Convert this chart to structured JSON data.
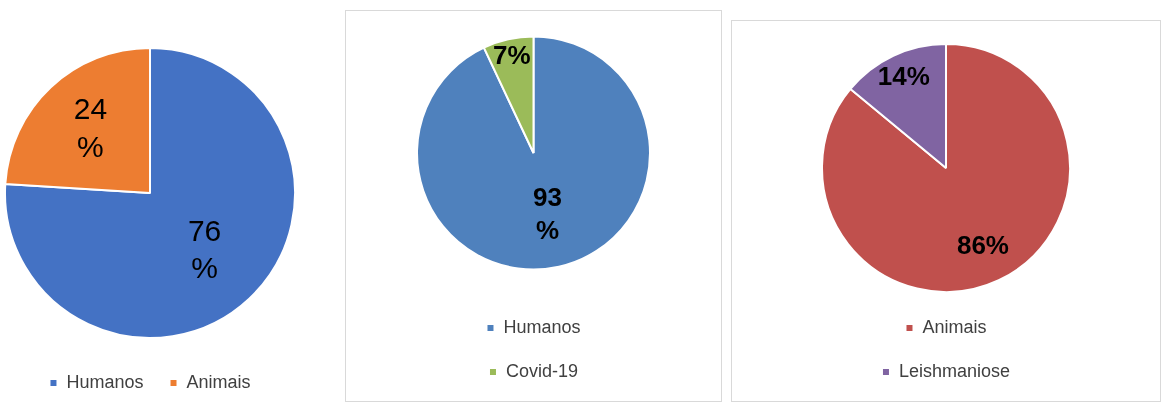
{
  "chart_data": [
    {
      "type": "pie",
      "categories": [
        "Humanos",
        "Animais"
      ],
      "values": [
        76,
        24
      ],
      "colors": [
        "#4472c4",
        "#ed7d31"
      ],
      "value_labels": [
        "76 %",
        "24 %"
      ],
      "legend": "bottom"
    },
    {
      "type": "pie",
      "categories": [
        "Humanos",
        "Covid-19"
      ],
      "values": [
        93,
        7
      ],
      "colors": [
        "#4f81bd",
        "#9bbb59"
      ],
      "value_labels": [
        "93 %",
        "7%"
      ],
      "legend": "bottom"
    },
    {
      "type": "pie",
      "categories": [
        "Animais",
        "Leishmaniose"
      ],
      "values": [
        86,
        14
      ],
      "colors": [
        "#c0504d",
        "#8064a2"
      ],
      "value_labels": [
        "86%",
        "14%"
      ],
      "legend": "bottom"
    }
  ]
}
